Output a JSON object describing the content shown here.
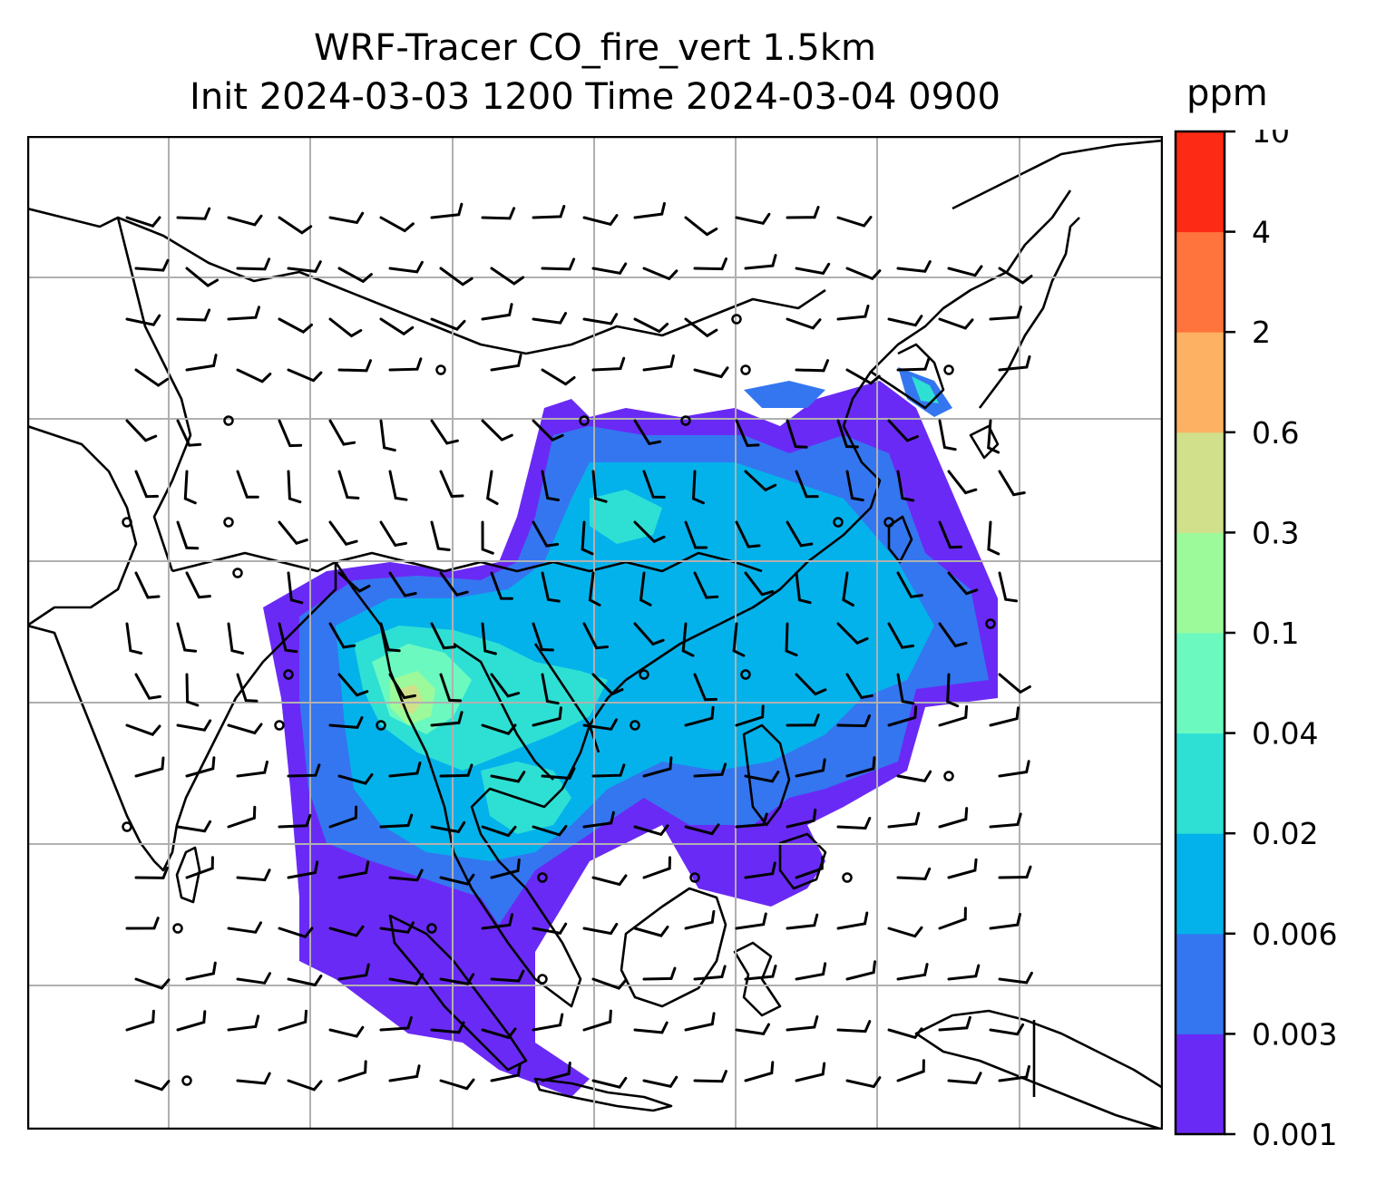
{
  "title": {
    "line1": "WRF-Tracer CO_fire_vert 1.5km",
    "line2": "Init 2024-03-03 1200 Time 2024-03-04 0900"
  },
  "colorbar": {
    "unit": "ppm",
    "ticks": [
      "0.001",
      "0.003",
      "0.006",
      "0.02",
      "0.04",
      "0.1",
      "0.3",
      "0.6",
      "2",
      "4",
      "10"
    ],
    "colors": [
      "#6a2af5",
      "#3476f0",
      "#04b2eb",
      "#2ee0d4",
      "#6cf9c0",
      "#9cfa9a",
      "#d0e08b",
      "#fdb162",
      "#ff733d",
      "#fd2a16"
    ]
  },
  "map": {
    "variable": "CO_fire_vert",
    "level": "1.5km",
    "gridlines": true,
    "coastlines": true,
    "wind_barbs": true
  }
}
